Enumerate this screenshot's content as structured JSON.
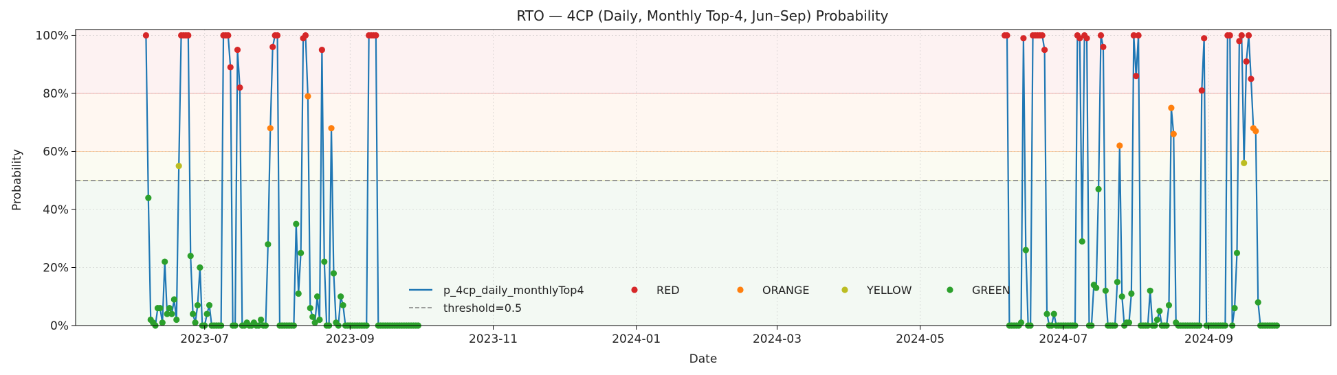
{
  "chart_data": {
    "type": "line",
    "title": "RTO — 4CP (Daily,  Monthly Top-4, Jun–Sep) Probability",
    "xlabel": "Date",
    "ylabel": "Probability",
    "xlim": [
      "2023-05-07",
      "2024-10-23"
    ],
    "ylim": [
      0,
      1.02
    ],
    "x_ticks": [
      {
        "date": "2023-07-01",
        "label": "2023-07"
      },
      {
        "date": "2023-09-01",
        "label": "2023-09"
      },
      {
        "date": "2023-11-01",
        "label": "2023-11"
      },
      {
        "date": "2024-01-01",
        "label": "2024-01"
      },
      {
        "date": "2024-03-01",
        "label": "2024-03"
      },
      {
        "date": "2024-05-01",
        "label": "2024-05"
      },
      {
        "date": "2024-07-01",
        "label": "2024-07"
      },
      {
        "date": "2024-09-01",
        "label": "2024-09"
      }
    ],
    "y_ticks": [
      {
        "value": 0,
        "label": "0%"
      },
      {
        "value": 0.2,
        "label": "20%"
      },
      {
        "value": 0.4,
        "label": "40%"
      },
      {
        "value": 0.6,
        "label": "60%"
      },
      {
        "value": 0.8,
        "label": "80%"
      },
      {
        "value": 1.0,
        "label": "100%"
      }
    ],
    "grid": true,
    "threshold": 0.5,
    "bands": [
      {
        "from": 0.0,
        "to": 0.5,
        "color": "#2ca02c"
      },
      {
        "from": 0.5,
        "to": 0.6,
        "color": "#bcbd22"
      },
      {
        "from": 0.6,
        "to": 0.8,
        "color": "#ff7f0e"
      },
      {
        "from": 0.8,
        "to": 1.02,
        "color": "#d62728"
      }
    ],
    "legend_position": "bottom-center",
    "legend": [
      {
        "label": "p_4cp_daily_monthlyTop4",
        "kind": "line",
        "color": "#1f77b4"
      },
      {
        "label": "threshold=0.5",
        "kind": "dash",
        "color": "#808080"
      },
      {
        "label": "RED",
        "kind": "dot",
        "color": "#d62728"
      },
      {
        "label": "ORANGE",
        "kind": "dot",
        "color": "#ff7f0e"
      },
      {
        "label": "YELLOW",
        "kind": "dot",
        "color": "#bcbd22"
      },
      {
        "label": "GREEN",
        "kind": "dot",
        "color": "#2ca02c"
      }
    ],
    "category_colors": {
      "RED": "#d62728",
      "ORANGE": "#ff7f0e",
      "YELLOW": "#bcbd22",
      "GREEN": "#2ca02c"
    },
    "series": [
      {
        "name": "p_4cp_daily_monthlyTop4",
        "color": "#1f77b4",
        "points": [
          [
            "2023-06-06",
            1.0
          ],
          [
            "2023-06-07",
            0.44
          ],
          [
            "2023-06-08",
            0.02
          ],
          [
            "2023-06-09",
            0.01
          ],
          [
            "2023-06-10",
            0.0
          ],
          [
            "2023-06-11",
            0.06
          ],
          [
            "2023-06-12",
            0.06
          ],
          [
            "2023-06-13",
            0.01
          ],
          [
            "2023-06-14",
            0.22
          ],
          [
            "2023-06-15",
            0.04
          ],
          [
            "2023-06-16",
            0.06
          ],
          [
            "2023-06-17",
            0.04
          ],
          [
            "2023-06-18",
            0.09
          ],
          [
            "2023-06-19",
            0.02
          ],
          [
            "2023-06-20",
            0.55
          ],
          [
            "2023-06-21",
            1.0
          ],
          [
            "2023-06-22",
            1.0
          ],
          [
            "2023-06-23",
            1.0
          ],
          [
            "2023-06-24",
            1.0
          ],
          [
            "2023-06-25",
            0.24
          ],
          [
            "2023-06-26",
            0.04
          ],
          [
            "2023-06-27",
            0.01
          ],
          [
            "2023-06-28",
            0.07
          ],
          [
            "2023-06-29",
            0.2
          ],
          [
            "2023-06-30",
            0.0
          ],
          [
            "2023-07-01",
            0.0
          ],
          [
            "2023-07-02",
            0.04
          ],
          [
            "2023-07-03",
            0.07
          ],
          [
            "2023-07-04",
            0.0
          ],
          [
            "2023-07-05",
            0.0
          ],
          [
            "2023-07-06",
            0.0
          ],
          [
            "2023-07-07",
            0.0
          ],
          [
            "2023-07-08",
            0.0
          ],
          [
            "2023-07-09",
            1.0
          ],
          [
            "2023-07-10",
            1.0
          ],
          [
            "2023-07-11",
            1.0
          ],
          [
            "2023-07-12",
            0.89
          ],
          [
            "2023-07-13",
            0.0
          ],
          [
            "2023-07-14",
            0.0
          ],
          [
            "2023-07-15",
            0.95
          ],
          [
            "2023-07-16",
            0.82
          ],
          [
            "2023-07-17",
            0.0
          ],
          [
            "2023-07-18",
            0.0
          ],
          [
            "2023-07-19",
            0.01
          ],
          [
            "2023-07-20",
            0.0
          ],
          [
            "2023-07-21",
            0.0
          ],
          [
            "2023-07-22",
            0.01
          ],
          [
            "2023-07-23",
            0.0
          ],
          [
            "2023-07-24",
            0.0
          ],
          [
            "2023-07-25",
            0.02
          ],
          [
            "2023-07-26",
            0.0
          ],
          [
            "2023-07-27",
            0.0
          ],
          [
            "2023-07-28",
            0.28
          ],
          [
            "2023-07-29",
            0.68
          ],
          [
            "2023-07-30",
            0.96
          ],
          [
            "2023-07-31",
            1.0
          ],
          [
            "2023-08-01",
            1.0
          ],
          [
            "2023-08-02",
            0.0
          ],
          [
            "2023-08-03",
            0.0
          ],
          [
            "2023-08-04",
            0.0
          ],
          [
            "2023-08-05",
            0.0
          ],
          [
            "2023-08-06",
            0.0
          ],
          [
            "2023-08-07",
            0.0
          ],
          [
            "2023-08-08",
            0.0
          ],
          [
            "2023-08-09",
            0.35
          ],
          [
            "2023-08-10",
            0.11
          ],
          [
            "2023-08-11",
            0.25
          ],
          [
            "2023-08-12",
            0.99
          ],
          [
            "2023-08-13",
            1.0
          ],
          [
            "2023-08-14",
            0.79
          ],
          [
            "2023-08-15",
            0.06
          ],
          [
            "2023-08-16",
            0.03
          ],
          [
            "2023-08-17",
            0.01
          ],
          [
            "2023-08-18",
            0.1
          ],
          [
            "2023-08-19",
            0.02
          ],
          [
            "2023-08-20",
            0.95
          ],
          [
            "2023-08-21",
            0.22
          ],
          [
            "2023-08-22",
            0.0
          ],
          [
            "2023-08-23",
            0.0
          ],
          [
            "2023-08-24",
            0.68
          ],
          [
            "2023-08-25",
            0.18
          ],
          [
            "2023-08-26",
            0.01
          ],
          [
            "2023-08-27",
            0.0
          ],
          [
            "2023-08-28",
            0.1
          ],
          [
            "2023-08-29",
            0.07
          ],
          [
            "2023-08-30",
            0.0
          ],
          [
            "2023-08-31",
            0.0
          ],
          [
            "2023-09-01",
            0.0
          ],
          [
            "2023-09-02",
            0.0
          ],
          [
            "2023-09-03",
            0.0
          ],
          [
            "2023-09-04",
            0.0
          ],
          [
            "2023-09-05",
            0.0
          ],
          [
            "2023-09-06",
            0.0
          ],
          [
            "2023-09-07",
            0.0
          ],
          [
            "2023-09-08",
            0.0
          ],
          [
            "2023-09-09",
            1.0
          ],
          [
            "2023-09-10",
            1.0
          ],
          [
            "2023-09-11",
            1.0
          ],
          [
            "2023-09-12",
            1.0
          ],
          [
            "2023-09-13",
            0.0
          ],
          [
            "2023-09-14",
            0.0
          ],
          [
            "2023-09-15",
            0.0
          ],
          [
            "2023-09-16",
            0.0
          ],
          [
            "2023-09-17",
            0.0
          ],
          [
            "2023-09-18",
            0.0
          ],
          [
            "2023-09-19",
            0.0
          ],
          [
            "2023-09-20",
            0.0
          ],
          [
            "2023-09-21",
            0.0
          ],
          [
            "2023-09-22",
            0.0
          ],
          [
            "2023-09-23",
            0.0
          ],
          [
            "2023-09-24",
            0.0
          ],
          [
            "2023-09-25",
            0.0
          ],
          [
            "2023-09-26",
            0.0
          ],
          [
            "2023-09-27",
            0.0
          ],
          [
            "2023-09-28",
            0.0
          ],
          [
            "2023-09-29",
            0.0
          ],
          [
            "2023-09-30",
            0.0
          ],
          [
            "2024-06-06",
            1.0
          ],
          [
            "2024-06-07",
            1.0
          ],
          [
            "2024-06-08",
            0.0
          ],
          [
            "2024-06-09",
            0.0
          ],
          [
            "2024-06-10",
            0.0
          ],
          [
            "2024-06-11",
            0.0
          ],
          [
            "2024-06-12",
            0.0
          ],
          [
            "2024-06-13",
            0.01
          ],
          [
            "2024-06-14",
            0.99
          ],
          [
            "2024-06-15",
            0.26
          ],
          [
            "2024-06-16",
            0.0
          ],
          [
            "2024-06-17",
            0.0
          ],
          [
            "2024-06-18",
            1.0
          ],
          [
            "2024-06-19",
            1.0
          ],
          [
            "2024-06-20",
            1.0
          ],
          [
            "2024-06-21",
            1.0
          ],
          [
            "2024-06-22",
            1.0
          ],
          [
            "2024-06-23",
            0.95
          ],
          [
            "2024-06-24",
            0.04
          ],
          [
            "2024-06-25",
            0.0
          ],
          [
            "2024-06-26",
            0.0
          ],
          [
            "2024-06-27",
            0.04
          ],
          [
            "2024-06-28",
            0.0
          ],
          [
            "2024-06-29",
            0.0
          ],
          [
            "2024-06-30",
            0.0
          ],
          [
            "2024-07-01",
            0.0
          ],
          [
            "2024-07-02",
            0.0
          ],
          [
            "2024-07-03",
            0.0
          ],
          [
            "2024-07-04",
            0.0
          ],
          [
            "2024-07-05",
            0.0
          ],
          [
            "2024-07-06",
            0.0
          ],
          [
            "2024-07-07",
            1.0
          ],
          [
            "2024-07-08",
            0.99
          ],
          [
            "2024-07-09",
            0.29
          ],
          [
            "2024-07-10",
            1.0
          ],
          [
            "2024-07-11",
            0.99
          ],
          [
            "2024-07-12",
            0.0
          ],
          [
            "2024-07-13",
            0.0
          ],
          [
            "2024-07-14",
            0.14
          ],
          [
            "2024-07-15",
            0.13
          ],
          [
            "2024-07-16",
            0.47
          ],
          [
            "2024-07-17",
            1.0
          ],
          [
            "2024-07-18",
            0.96
          ],
          [
            "2024-07-19",
            0.12
          ],
          [
            "2024-07-20",
            0.0
          ],
          [
            "2024-07-21",
            0.0
          ],
          [
            "2024-07-22",
            0.0
          ],
          [
            "2024-07-23",
            0.0
          ],
          [
            "2024-07-24",
            0.15
          ],
          [
            "2024-07-25",
            0.62
          ],
          [
            "2024-07-26",
            0.1
          ],
          [
            "2024-07-27",
            0.0
          ],
          [
            "2024-07-28",
            0.01
          ],
          [
            "2024-07-29",
            0.01
          ],
          [
            "2024-07-30",
            0.11
          ],
          [
            "2024-07-31",
            1.0
          ],
          [
            "2024-08-01",
            0.86
          ],
          [
            "2024-08-02",
            1.0
          ],
          [
            "2024-08-03",
            0.0
          ],
          [
            "2024-08-04",
            0.0
          ],
          [
            "2024-08-05",
            0.0
          ],
          [
            "2024-08-06",
            0.0
          ],
          [
            "2024-08-07",
            0.12
          ],
          [
            "2024-08-08",
            0.0
          ],
          [
            "2024-08-09",
            0.0
          ],
          [
            "2024-08-10",
            0.02
          ],
          [
            "2024-08-11",
            0.05
          ],
          [
            "2024-08-12",
            0.0
          ],
          [
            "2024-08-13",
            0.0
          ],
          [
            "2024-08-14",
            0.0
          ],
          [
            "2024-08-15",
            0.07
          ],
          [
            "2024-08-16",
            0.75
          ],
          [
            "2024-08-17",
            0.66
          ],
          [
            "2024-08-18",
            0.01
          ],
          [
            "2024-08-19",
            0.0
          ],
          [
            "2024-08-20",
            0.0
          ],
          [
            "2024-08-21",
            0.0
          ],
          [
            "2024-08-22",
            0.0
          ],
          [
            "2024-08-23",
            0.0
          ],
          [
            "2024-08-24",
            0.0
          ],
          [
            "2024-08-25",
            0.0
          ],
          [
            "2024-08-26",
            0.0
          ],
          [
            "2024-08-27",
            0.0
          ],
          [
            "2024-08-28",
            0.0
          ],
          [
            "2024-08-29",
            0.81
          ],
          [
            "2024-08-30",
            0.99
          ],
          [
            "2024-08-31",
            0.0
          ],
          [
            "2024-09-01",
            0.0
          ],
          [
            "2024-09-02",
            0.0
          ],
          [
            "2024-09-03",
            0.0
          ],
          [
            "2024-09-04",
            0.0
          ],
          [
            "2024-09-05",
            0.0
          ],
          [
            "2024-09-06",
            0.0
          ],
          [
            "2024-09-07",
            0.0
          ],
          [
            "2024-09-08",
            0.0
          ],
          [
            "2024-09-09",
            1.0
          ],
          [
            "2024-09-10",
            1.0
          ],
          [
            "2024-09-11",
            0.0
          ],
          [
            "2024-09-12",
            0.06
          ],
          [
            "2024-09-13",
            0.25
          ],
          [
            "2024-09-14",
            0.98
          ],
          [
            "2024-09-15",
            1.0
          ],
          [
            "2024-09-16",
            0.56
          ],
          [
            "2024-09-17",
            0.91
          ],
          [
            "2024-09-18",
            1.0
          ],
          [
            "2024-09-19",
            0.85
          ],
          [
            "2024-09-20",
            0.68
          ],
          [
            "2024-09-21",
            0.67
          ],
          [
            "2024-09-22",
            0.08
          ],
          [
            "2024-09-23",
            0.0
          ],
          [
            "2024-09-24",
            0.0
          ],
          [
            "2024-09-25",
            0.0
          ],
          [
            "2024-09-26",
            0.0
          ],
          [
            "2024-09-27",
            0.0
          ],
          [
            "2024-09-28",
            0.0
          ],
          [
            "2024-09-29",
            0.0
          ],
          [
            "2024-09-30",
            0.0
          ]
        ]
      }
    ]
  }
}
